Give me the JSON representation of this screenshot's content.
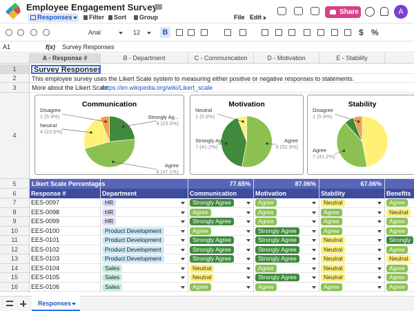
{
  "header": {
    "title": "Employee Engagement Survey",
    "view": "Responses",
    "tools": [
      "Filter",
      "Sort",
      "Group"
    ],
    "menus": [
      "File",
      "Edit"
    ],
    "share": "Share",
    "avatar": "A"
  },
  "format_bar": {
    "font": "Arial",
    "size": "12",
    "items": [
      "B",
      "$",
      "%"
    ]
  },
  "formula_bar": {
    "cell": "A1",
    "fx": "f(x)",
    "value": "Survey Responses"
  },
  "sheet": {
    "columns": [
      "A - Response #",
      "B - Department",
      "C - Communication",
      "D - Motivation",
      "E - Stability"
    ],
    "row_numbers": [
      1,
      2,
      3,
      4,
      5,
      6,
      7,
      8,
      9,
      10,
      11,
      12,
      13,
      14,
      15,
      16
    ],
    "title": "Survey Responses",
    "intro": "This employee survey uses the Likert Scale system to measuring either positive or negative responses to statements.",
    "more": "More about the Likert Scale",
    "link": "https://en.wikipedia.org/wiki/Likert_scale",
    "charts": [
      {
        "type": "pie",
        "title": "Communication",
        "slices": [
          {
            "name": "Strongly Ag...",
            "value": 4,
            "value_label": "4 (23.5%)",
            "color": "#3f8a3c"
          },
          {
            "name": "Agree",
            "value": 8,
            "value_label": "8 (47.1%)",
            "color": "#8cc152"
          },
          {
            "name": "Neutral",
            "value": 4,
            "value_label": "4 (23.5%)",
            "color": "#fff176"
          },
          {
            "name": "Disagree",
            "value": 1,
            "value_label": "1 (5.9%)",
            "color": "#f0a04b"
          }
        ]
      },
      {
        "type": "pie",
        "title": "Motivation",
        "slices": [
          {
            "name": "Agree",
            "value": 9,
            "value_label": "9 (52.9%)",
            "color": "#8cc152"
          },
          {
            "name": "Strongly Ag...",
            "value": 7,
            "value_label": "7 (41.2%)",
            "color": "#3f8a3c"
          },
          {
            "name": "Neutral",
            "value": 1,
            "value_label": "1 (5.9%)",
            "color": "#fff176"
          }
        ]
      },
      {
        "type": "pie",
        "title": "Stability",
        "slices": [
          {
            "value": 8,
            "color": "#fff176"
          },
          {
            "name": "Agree",
            "value": 7,
            "value_label": "7 (41.2%)",
            "color": "#8cc152"
          },
          {
            "value": 1,
            "color": "#3f8a3c"
          },
          {
            "name": "Disagree",
            "value": 1,
            "value_label": "1 (5.9%)",
            "color": "#f0a04b"
          }
        ]
      }
    ],
    "summary": {
      "label": "Likert Scale Percentages",
      "values": [
        "77.65%",
        "87.06%",
        "67.06%"
      ]
    },
    "table_header": [
      "Response #",
      "Department",
      "Communication",
      "Motivation",
      "Stability",
      "Benefits"
    ],
    "rows": [
      [
        "EES-0097",
        "HR",
        "Strongly Agree",
        "Agree",
        "Neutral",
        "Agree"
      ],
      [
        "EES-0098",
        "HR",
        "Agree",
        "Agree",
        "Agree",
        "Neutral"
      ],
      [
        "EES-0099",
        "HR",
        "Strongly Agree",
        "Agree",
        "Agree",
        "Agree"
      ],
      [
        "EES-0100",
        "Product Development",
        "Agree",
        "Strongly Agree",
        "Agree",
        "Agree"
      ],
      [
        "EES-0101",
        "Product Development",
        "Strongly Agree",
        "Strongly Agree",
        "Neutral",
        "Strongly"
      ],
      [
        "EES-0102",
        "Product Development",
        "Strongly Agree",
        "Strongly Agree",
        "Neutral",
        "Agree"
      ],
      [
        "EES-0103",
        "Product Development",
        "Strongly Agree",
        "Strongly Agree",
        "Neutral",
        "Neutral"
      ],
      [
        "EES-0104",
        "Sales",
        "Neutral",
        "Agree",
        "Neutral",
        "Agree"
      ],
      [
        "EES-0105",
        "Sales",
        "Neutral",
        "Strongly Agree",
        "Neutral",
        "Agree"
      ],
      [
        "EES-0106",
        "Sales",
        "Agree",
        "Agree",
        "Agree",
        "Agree"
      ]
    ]
  },
  "footer": {
    "tab": "Responses"
  }
}
